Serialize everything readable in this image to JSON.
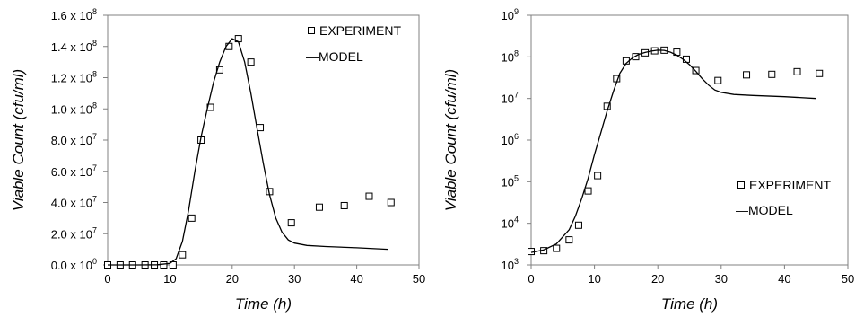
{
  "chart_data": [
    {
      "type": "scatter",
      "title": "",
      "xlabel": "Time (h)",
      "ylabel": "Viable Count (cfu/ml)",
      "xlim": [
        0,
        50
      ],
      "ylim": [
        0,
        160000000
      ],
      "y_scale": "linear",
      "x_ticks": [
        "0",
        "10",
        "20",
        "30",
        "40",
        "50"
      ],
      "y_tick_values": [
        0,
        20000000,
        40000000,
        60000000,
        80000000,
        100000000,
        120000000,
        140000000,
        160000000
      ],
      "y_ticks": [
        {
          "mantissa": "0.0 x 10",
          "exp": "0"
        },
        {
          "mantissa": "2.0 x 10",
          "exp": "7"
        },
        {
          "mantissa": "4.0 x 10",
          "exp": "7"
        },
        {
          "mantissa": "6.0 x 10",
          "exp": "7"
        },
        {
          "mantissa": "8.0 x 10",
          "exp": "7"
        },
        {
          "mantissa": "1.0 x 10",
          "exp": "8"
        },
        {
          "mantissa": "1.2 x 10",
          "exp": "8"
        },
        {
          "mantissa": "1.4 x 10",
          "exp": "8"
        },
        {
          "mantissa": "1.6 x 10",
          "exp": "8"
        }
      ],
      "grid": false,
      "legend": {
        "position": "top-right",
        "entries": [
          "EXPERIMENT",
          "—MODEL"
        ]
      },
      "series": [
        {
          "name": "EXPERIMENT",
          "style": "open-square",
          "x": [
            0,
            2,
            4,
            6,
            7.5,
            9,
            10.5,
            12,
            13.5,
            15,
            16.5,
            18,
            19.5,
            21,
            23,
            24.5,
            26,
            29.5,
            34,
            38,
            42,
            45.5
          ],
          "y": [
            0,
            0,
            0,
            0,
            0,
            0,
            0,
            6500000,
            30000000,
            80000000,
            101000000,
            125000000,
            140000000,
            145000000,
            130000000,
            88000000,
            47000000,
            27000000,
            37000000,
            38000000,
            44000000,
            40000000
          ]
        },
        {
          "name": "MODEL",
          "style": "line",
          "x": [
            0,
            5,
            8,
            10,
            11,
            12,
            13,
            14,
            15,
            16,
            17,
            18,
            19,
            20,
            21,
            22,
            23,
            24,
            25,
            26,
            27,
            28,
            29,
            30,
            32,
            35,
            40,
            45
          ],
          "y": [
            0,
            0,
            100000,
            1000000,
            4000000,
            15000000,
            35000000,
            60000000,
            82000000,
            100000000,
            117000000,
            130000000,
            140000000,
            145000000,
            143000000,
            130000000,
            110000000,
            87000000,
            65000000,
            45000000,
            30000000,
            21000000,
            16000000,
            14000000,
            12500000,
            11800000,
            11000000,
            10000000
          ]
        }
      ]
    },
    {
      "type": "scatter",
      "title": "",
      "xlabel": "Time (h)",
      "ylabel": "Viable Count (cfu/ml)",
      "xlim": [
        0,
        50
      ],
      "ylim": [
        1000,
        1000000000
      ],
      "y_scale": "log",
      "x_ticks": [
        "0",
        "10",
        "20",
        "30",
        "40",
        "50"
      ],
      "y_tick_values": [
        1000,
        10000,
        100000,
        1000000,
        10000000,
        100000000,
        1000000000
      ],
      "y_ticks": [
        {
          "mantissa": "10",
          "exp": "3"
        },
        {
          "mantissa": "10",
          "exp": "4"
        },
        {
          "mantissa": "10",
          "exp": "5"
        },
        {
          "mantissa": "10",
          "exp": "6"
        },
        {
          "mantissa": "10",
          "exp": "7"
        },
        {
          "mantissa": "10",
          "exp": "8"
        },
        {
          "mantissa": "10",
          "exp": "9"
        }
      ],
      "grid": false,
      "legend": {
        "position": "bottom-right",
        "entries": [
          "EXPERIMENT",
          "—MODEL"
        ]
      },
      "series": [
        {
          "name": "EXPERIMENT",
          "style": "open-square",
          "x": [
            0,
            2,
            4,
            6,
            7.5,
            9,
            10.5,
            12,
            13.5,
            15,
            16.5,
            18,
            19.5,
            21,
            23,
            24.5,
            26,
            29.5,
            34,
            38,
            42,
            45.5
          ],
          "y": [
            2100,
            2200,
            2500,
            4000,
            9000,
            60000,
            140000,
            6500000,
            30000000,
            80000000,
            101000000,
            125000000,
            140000000,
            145000000,
            130000000,
            88000000,
            47000000,
            27000000,
            37000000,
            38000000,
            44000000,
            40000000
          ]
        },
        {
          "name": "MODEL",
          "style": "line",
          "x": [
            0,
            2,
            4,
            6,
            7,
            8,
            9,
            10,
            11,
            12,
            13,
            14,
            15,
            16,
            17,
            18,
            19,
            20,
            21,
            22,
            23,
            24,
            25,
            26,
            27,
            28,
            29,
            30,
            32,
            35,
            40,
            45
          ],
          "y": [
            2000,
            2300,
            3200,
            7000,
            15000,
            40000,
            120000,
            450000,
            1500000,
            5000000,
            15000000,
            40000000,
            70000000,
            95000000,
            115000000,
            128000000,
            138000000,
            145000000,
            143000000,
            130000000,
            110000000,
            87000000,
            65000000,
            45000000,
            30000000,
            21000000,
            16000000,
            14000000,
            12500000,
            11800000,
            11000000,
            10000000
          ]
        }
      ]
    }
  ]
}
